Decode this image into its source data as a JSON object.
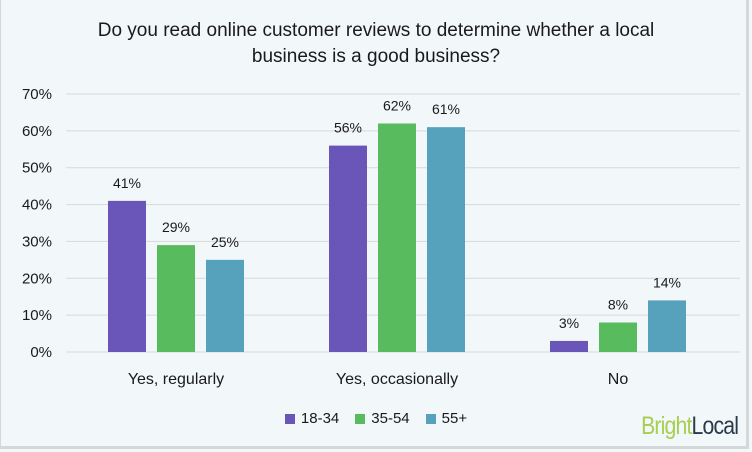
{
  "chart_data": {
    "type": "bar",
    "title_lines": [
      "Do you read online customer reviews to determine whether a local",
      "business is a good business?"
    ],
    "categories": [
      "Yes, regularly",
      "Yes, occasionally",
      "No"
    ],
    "series": [
      {
        "name": "18-34",
        "color": "#6a55b8",
        "values": [
          41,
          56,
          3
        ]
      },
      {
        "name": "35-54",
        "color": "#58bb5e",
        "values": [
          29,
          62,
          8
        ]
      },
      {
        "name": "55+",
        "color": "#56a2bd",
        "values": [
          25,
          61,
          14
        ]
      }
    ],
    "ylim": [
      0,
      70
    ],
    "yticks": [
      0,
      10,
      20,
      30,
      40,
      50,
      60,
      70
    ],
    "ytick_format": "%",
    "grid": true,
    "legend_placement": "bottom"
  },
  "logo": {
    "part1": "Bright",
    "part2": "Local"
  }
}
